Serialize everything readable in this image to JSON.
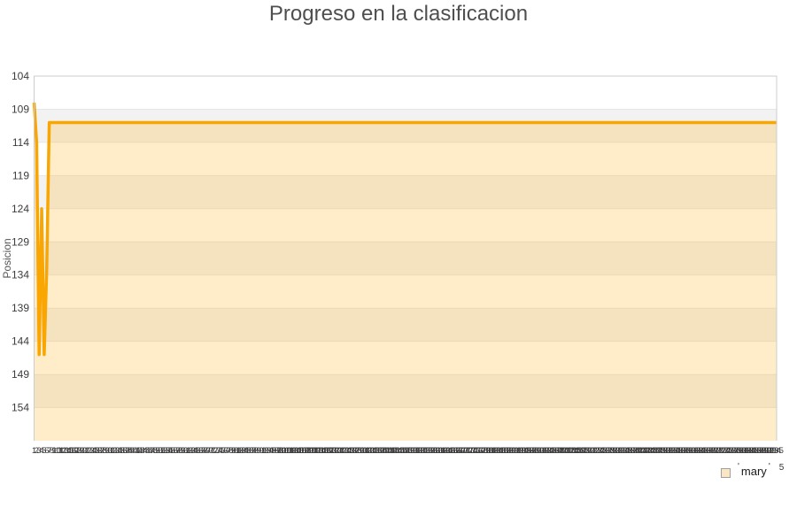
{
  "title": "Progreso en la clasificacion",
  "y_axis_title": "Posicion",
  "legend": {
    "open_quote": "'",
    "label": "mary",
    "close_quote": "'",
    "superscript": "5",
    "swatch_color": "#fae6c4",
    "swatch_border": "#a0a0a0"
  },
  "chart_data": {
    "type": "area",
    "title": "Progreso en la clasificacion",
    "xlabel": "",
    "ylabel": "Posicion",
    "y_ticks": [
      104,
      109,
      114,
      119,
      124,
      129,
      134,
      139,
      144,
      149,
      154
    ],
    "y_min": 104,
    "y_max": 159,
    "y_inverted": true,
    "x_labels": {
      "from": 1,
      "to": 295,
      "step": 1
    },
    "series": [
      {
        "name": "mary",
        "line_color": "#f9a602",
        "fill_color": "rgba(255,172,20,0.23)",
        "initial_values": [
          108,
          114,
          146,
          124,
          146,
          133,
          111
        ],
        "steady_value": 111,
        "total_points": 295
      }
    ],
    "plot_bands": {
      "even_color": "#ffffff",
      "odd_color": "#f2f2f3",
      "band_size": 5
    },
    "grid_color": "rgba(0,0,0,0.07)",
    "border_color": "#cccccc",
    "tick_label_color": "#3c3c3c",
    "legend_position": "bottom-right"
  }
}
